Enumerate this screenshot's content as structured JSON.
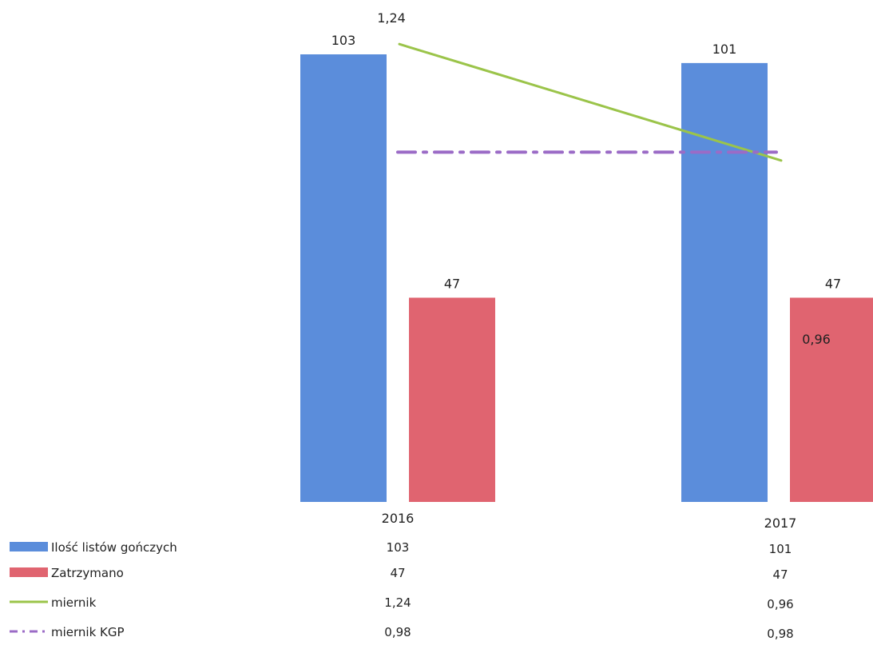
{
  "chart_data": {
    "type": "bar",
    "categories": [
      "2016",
      "2017"
    ],
    "series": [
      {
        "name": "Ilość listów gończych",
        "kind": "bar",
        "values": [
          103,
          101
        ],
        "labels": [
          "103",
          "101"
        ],
        "color": "#5B8DDB"
      },
      {
        "name": "Zatrzymano",
        "kind": "bar",
        "values": [
          47,
          47
        ],
        "labels": [
          "47",
          "47"
        ],
        "color": "#E06470"
      },
      {
        "name": "miernik",
        "kind": "line",
        "values": [
          1.24,
          0.96
        ],
        "labels": [
          "1,24",
          "0,96"
        ],
        "color": "#9BC44A"
      },
      {
        "name": "miernik KGP",
        "kind": "line-dashdot",
        "values": [
          0.98,
          0.98
        ],
        "labels": [
          "0,98",
          "0,98"
        ],
        "color": "#9B6BC6"
      }
    ],
    "data_table": true,
    "legend_placement": "left-of-table",
    "grid": false
  }
}
